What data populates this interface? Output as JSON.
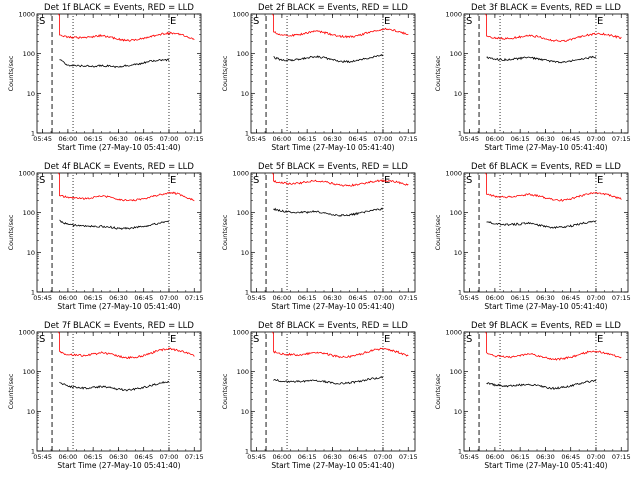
{
  "colors": {
    "events": "#000000",
    "lld": "#ff0000",
    "background": "#ffffff"
  },
  "chart_data": [
    {
      "type": "line",
      "title": "Det 1f BLACK = Events, RED = LLD",
      "xlabel": "Start Time (27-May-10 05:41:40)",
      "ylabel": "Counts/sec",
      "yscale": "log",
      "ylim": [
        1,
        1000
      ],
      "x_ticks": [
        "05:45",
        "06:00",
        "06:15",
        "06:30",
        "06:45",
        "07:00",
        "07:15"
      ],
      "y_ticks": [
        "1",
        "10",
        "100",
        "1000"
      ],
      "markers": {
        "start": "S",
        "end": "E"
      },
      "grid": false,
      "x": [
        "05:50",
        "05:55",
        "06:00",
        "06:05",
        "06:10",
        "06:15",
        "06:20",
        "06:25",
        "06:30",
        "06:35",
        "06:40",
        "06:45",
        "06:50",
        "06:55",
        "07:00",
        "07:05",
        "07:10",
        "07:15"
      ],
      "series": [
        {
          "color": "#000000",
          "values": [
            null,
            70,
            52,
            50,
            49,
            48,
            50,
            48,
            46,
            50,
            53,
            58,
            66,
            68,
            70,
            null,
            null,
            null
          ]
        },
        {
          "color": "#ff0000",
          "values": [
            null,
            300,
            260,
            255,
            250,
            270,
            285,
            265,
            230,
            215,
            220,
            245,
            280,
            310,
            330,
            320,
            280,
            230
          ]
        }
      ]
    },
    {
      "type": "line",
      "title": "Det 2f BLACK = Events, RED = LLD",
      "xlabel": "Start Time (27-May-10 05:41:40)",
      "ylabel": "Counts/sec",
      "yscale": "log",
      "ylim": [
        1,
        1000
      ],
      "x_ticks": [
        "05:45",
        "06:00",
        "06:15",
        "06:30",
        "06:45",
        "07:00",
        "07:15"
      ],
      "y_ticks": [
        "1",
        "10",
        "100",
        "1000"
      ],
      "markers": {
        "start": "S",
        "end": "E"
      },
      "grid": false,
      "x": [
        "05:50",
        "05:55",
        "06:00",
        "06:05",
        "06:10",
        "06:15",
        "06:20",
        "06:25",
        "06:30",
        "06:35",
        "06:40",
        "06:45",
        "06:50",
        "06:55",
        "07:00",
        "07:05",
        "07:10",
        "07:15"
      ],
      "series": [
        {
          "color": "#000000",
          "values": [
            null,
            80,
            70,
            68,
            72,
            78,
            85,
            80,
            70,
            64,
            63,
            68,
            75,
            85,
            92,
            null,
            null,
            null
          ]
        },
        {
          "color": "#ff0000",
          "values": [
            null,
            350,
            300,
            290,
            300,
            330,
            370,
            340,
            300,
            270,
            265,
            285,
            330,
            380,
            420,
            400,
            360,
            300
          ]
        }
      ]
    },
    {
      "type": "line",
      "title": "Det 3f BLACK = Events, RED = LLD",
      "xlabel": "Start Time (27-May-10 05:41:40)",
      "ylabel": "Counts/sec",
      "yscale": "log",
      "ylim": [
        1,
        1000
      ],
      "x_ticks": [
        "05:45",
        "06:00",
        "06:15",
        "06:30",
        "06:45",
        "07:00",
        "07:15"
      ],
      "y_ticks": [
        "1",
        "10",
        "100",
        "1000"
      ],
      "markers": {
        "start": "S",
        "end": "E"
      },
      "grid": false,
      "x": [
        "05:50",
        "05:55",
        "06:00",
        "06:05",
        "06:10",
        "06:15",
        "06:20",
        "06:25",
        "06:30",
        "06:35",
        "06:40",
        "06:45",
        "06:50",
        "06:55",
        "07:00",
        "07:05",
        "07:10",
        "07:15"
      ],
      "series": [
        {
          "color": "#000000",
          "values": [
            null,
            80,
            72,
            70,
            72,
            76,
            80,
            75,
            68,
            62,
            62,
            66,
            72,
            78,
            84,
            null,
            null,
            null
          ]
        },
        {
          "color": "#ff0000",
          "values": [
            null,
            280,
            250,
            240,
            245,
            265,
            290,
            270,
            240,
            215,
            210,
            225,
            260,
            295,
            320,
            310,
            280,
            250
          ]
        }
      ]
    },
    {
      "type": "line",
      "title": "Det 4f BLACK = Events, RED = LLD",
      "xlabel": "Start Time (27-May-10 05:41:40)",
      "ylabel": "Counts/sec",
      "yscale": "log",
      "ylim": [
        1,
        1000
      ],
      "x_ticks": [
        "05:45",
        "06:00",
        "06:15",
        "06:30",
        "06:45",
        "07:00",
        "07:15"
      ],
      "y_ticks": [
        "1",
        "10",
        "100",
        "1000"
      ],
      "markers": {
        "start": "S",
        "end": "E"
      },
      "grid": false,
      "x": [
        "05:50",
        "05:55",
        "06:00",
        "06:05",
        "06:10",
        "06:15",
        "06:20",
        "06:25",
        "06:30",
        "06:35",
        "06:40",
        "06:45",
        "06:50",
        "06:55",
        "07:00",
        "07:05",
        "07:10",
        "07:15"
      ],
      "series": [
        {
          "color": "#000000",
          "values": [
            null,
            62,
            50,
            48,
            47,
            46,
            45,
            43,
            40,
            40,
            42,
            45,
            50,
            55,
            60,
            null,
            null,
            null
          ]
        },
        {
          "color": "#ff0000",
          "values": [
            null,
            270,
            240,
            235,
            225,
            240,
            260,
            245,
            215,
            200,
            205,
            225,
            255,
            290,
            320,
            300,
            250,
            200
          ]
        }
      ]
    },
    {
      "type": "line",
      "title": "Det 5f BLACK = Events, RED = LLD",
      "xlabel": "Start Time (27-May-10 05:41:40)",
      "ylabel": "Counts/sec",
      "yscale": "log",
      "ylim": [
        1,
        1000
      ],
      "x_ticks": [
        "05:45",
        "06:00",
        "06:15",
        "06:30",
        "06:45",
        "07:00",
        "07:15"
      ],
      "y_ticks": [
        "1",
        "10",
        "100",
        "1000"
      ],
      "markers": {
        "start": "S",
        "end": "E"
      },
      "grid": false,
      "x": [
        "05:50",
        "05:55",
        "06:00",
        "06:05",
        "06:10",
        "06:15",
        "06:20",
        "06:25",
        "06:30",
        "06:35",
        "06:40",
        "06:45",
        "06:50",
        "06:55",
        "07:00",
        "07:05",
        "07:10",
        "07:15"
      ],
      "series": [
        {
          "color": "#000000",
          "values": [
            null,
            125,
            110,
            105,
            100,
            102,
            108,
            100,
            90,
            85,
            88,
            95,
            105,
            115,
            125,
            null,
            null,
            null
          ]
        },
        {
          "color": "#ff0000",
          "values": [
            null,
            620,
            560,
            540,
            550,
            600,
            650,
            610,
            540,
            490,
            480,
            510,
            570,
            620,
            650,
            620,
            570,
            500
          ]
        }
      ]
    },
    {
      "type": "line",
      "title": "Det 6f BLACK = Events, RED = LLD",
      "xlabel": "Start Time (27-May-10 05:41:40)",
      "ylabel": "Counts/sec",
      "yscale": "log",
      "ylim": [
        1,
        1000
      ],
      "x_ticks": [
        "05:45",
        "06:00",
        "06:15",
        "06:30",
        "06:45",
        "07:00",
        "07:15"
      ],
      "y_ticks": [
        "1",
        "10",
        "100",
        "1000"
      ],
      "markers": {
        "start": "S",
        "end": "E"
      },
      "grid": false,
      "x": [
        "05:50",
        "05:55",
        "06:00",
        "06:05",
        "06:10",
        "06:15",
        "06:20",
        "06:25",
        "06:30",
        "06:35",
        "06:40",
        "06:45",
        "06:50",
        "06:55",
        "07:00",
        "07:05",
        "07:10",
        "07:15"
      ],
      "series": [
        {
          "color": "#000000",
          "values": [
            null,
            60,
            52,
            50,
            50,
            52,
            54,
            50,
            45,
            42,
            43,
            46,
            52,
            57,
            62,
            null,
            null,
            null
          ]
        },
        {
          "color": "#ff0000",
          "values": [
            null,
            300,
            260,
            250,
            245,
            265,
            290,
            270,
            235,
            210,
            205,
            225,
            260,
            300,
            320,
            300,
            260,
            220
          ]
        }
      ]
    },
    {
      "type": "line",
      "title": "Det 7f BLACK = Events, RED = LLD",
      "xlabel": "Start Time (27-May-10 05:41:40)",
      "ylabel": "Counts/sec",
      "yscale": "log",
      "ylim": [
        1,
        1000
      ],
      "x_ticks": [
        "05:45",
        "06:00",
        "06:15",
        "06:30",
        "06:45",
        "07:00",
        "07:15"
      ],
      "y_ticks": [
        "1",
        "10",
        "100",
        "1000"
      ],
      "markers": {
        "start": "S",
        "end": "E"
      },
      "grid": false,
      "x": [
        "05:50",
        "05:55",
        "06:00",
        "06:05",
        "06:10",
        "06:15",
        "06:20",
        "06:25",
        "06:30",
        "06:35",
        "06:40",
        "06:45",
        "06:50",
        "06:55",
        "07:00",
        "07:05",
        "07:10",
        "07:15"
      ],
      "series": [
        {
          "color": "#000000",
          "values": [
            null,
            55,
            42,
            40,
            38,
            40,
            42,
            40,
            36,
            34,
            36,
            40,
            46,
            52,
            56,
            null,
            null,
            null
          ]
        },
        {
          "color": "#ff0000",
          "values": [
            null,
            310,
            270,
            260,
            255,
            275,
            300,
            280,
            245,
            225,
            230,
            255,
            300,
            350,
            380,
            350,
            300,
            250
          ]
        }
      ]
    },
    {
      "type": "line",
      "title": "Det 8f BLACK = Events, RED = LLD",
      "xlabel": "Start Time (27-May-10 05:41:40)",
      "ylabel": "Counts/sec",
      "yscale": "log",
      "ylim": [
        1,
        1000
      ],
      "x_ticks": [
        "05:45",
        "06:00",
        "06:15",
        "06:30",
        "06:45",
        "07:00",
        "07:15"
      ],
      "y_ticks": [
        "1",
        "10",
        "100",
        "1000"
      ],
      "markers": {
        "start": "S",
        "end": "E"
      },
      "grid": false,
      "x": [
        "05:50",
        "05:55",
        "06:00",
        "06:05",
        "06:10",
        "06:15",
        "06:20",
        "06:25",
        "06:30",
        "06:35",
        "06:40",
        "06:45",
        "06:50",
        "06:55",
        "07:00",
        "07:05",
        "07:10",
        "07:15"
      ],
      "series": [
        {
          "color": "#000000",
          "values": [
            null,
            62,
            58,
            56,
            56,
            58,
            60,
            57,
            52,
            50,
            52,
            56,
            62,
            68,
            72,
            null,
            null,
            null
          ]
        },
        {
          "color": "#ff0000",
          "values": [
            null,
            320,
            280,
            270,
            265,
            285,
            310,
            290,
            255,
            235,
            240,
            265,
            310,
            355,
            380,
            350,
            300,
            250
          ]
        }
      ]
    },
    {
      "type": "line",
      "title": "Det 9f BLACK = Events, RED = LLD",
      "xlabel": "Start Time (27-May-10 05:41:40)",
      "ylabel": "Counts/sec",
      "yscale": "log",
      "ylim": [
        1,
        1000
      ],
      "x_ticks": [
        "05:45",
        "06:00",
        "06:15",
        "06:30",
        "06:45",
        "07:00",
        "07:15"
      ],
      "y_ticks": [
        "1",
        "10",
        "100",
        "1000"
      ],
      "markers": {
        "start": "S",
        "end": "E"
      },
      "grid": false,
      "x": [
        "05:50",
        "05:55",
        "06:00",
        "06:05",
        "06:10",
        "06:15",
        "06:20",
        "06:25",
        "06:30",
        "06:35",
        "06:40",
        "06:45",
        "06:50",
        "06:55",
        "07:00",
        "07:05",
        "07:10",
        "07:15"
      ],
      "series": [
        {
          "color": "#000000",
          "values": [
            null,
            52,
            46,
            44,
            44,
            46,
            48,
            45,
            40,
            38,
            40,
            44,
            50,
            55,
            60,
            null,
            null,
            null
          ]
        },
        {
          "color": "#ff0000",
          "values": [
            null,
            290,
            250,
            240,
            235,
            255,
            280,
            260,
            225,
            205,
            210,
            230,
            270,
            310,
            330,
            300,
            260,
            220
          ]
        }
      ]
    }
  ]
}
